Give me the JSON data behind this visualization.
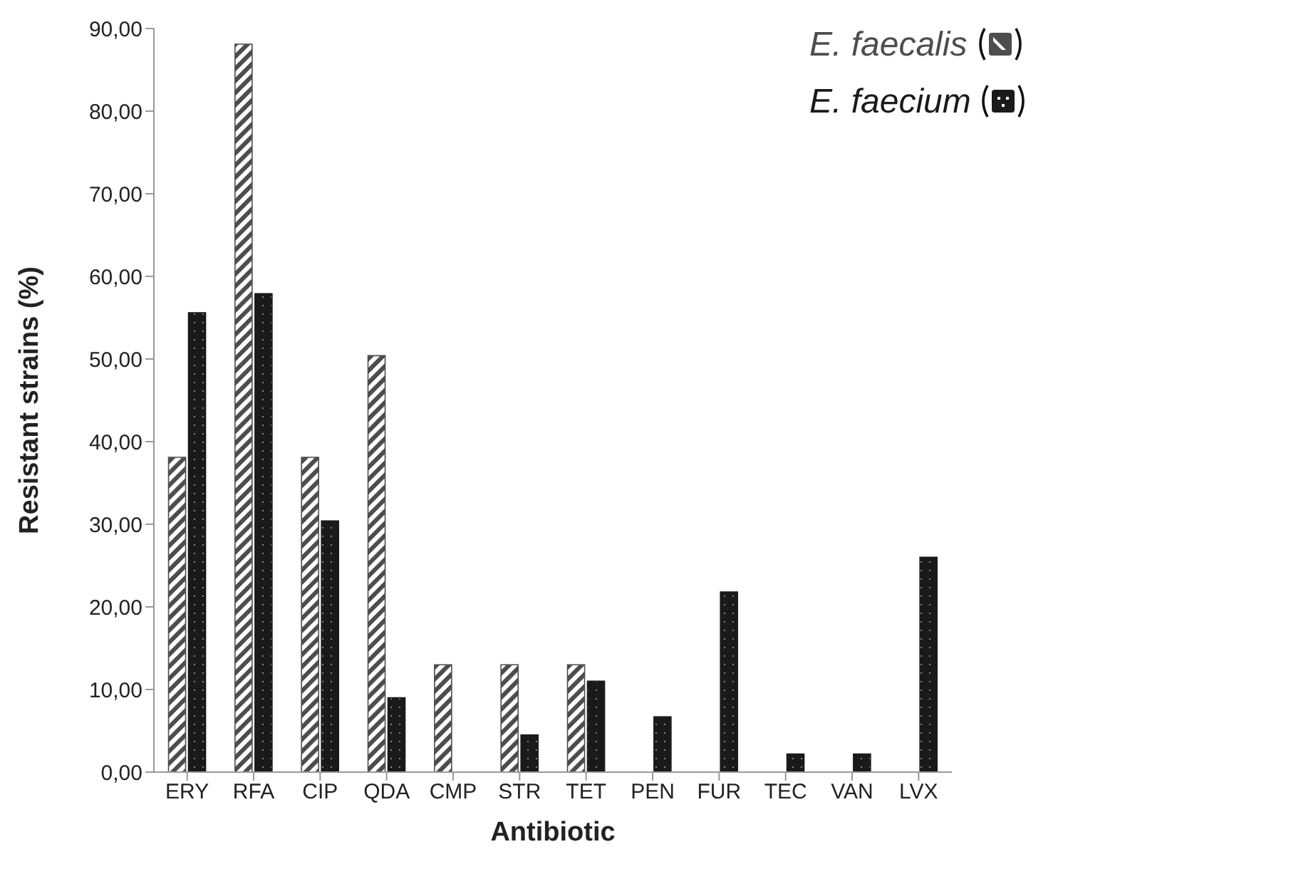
{
  "chart_data": {
    "type": "bar",
    "xlabel": "Antibiotic",
    "ylabel": "Resistant strains (%)",
    "categories": [
      "ERY",
      "RFA",
      "CIP",
      "QDA",
      "CMP",
      "STR",
      "TET",
      "PEN",
      "FUR",
      "TEC",
      "VAN",
      "LVX"
    ],
    "series": [
      {
        "name": "E. faecalis",
        "color": "#4d4d4d",
        "values": [
          38.1,
          88.1,
          38.1,
          50.4,
          13.0,
          13.0,
          13.0,
          0,
          0,
          0,
          0,
          0
        ]
      },
      {
        "name": "E. faecium",
        "color": "#1a1a1a",
        "values": [
          55.6,
          57.9,
          30.4,
          9.0,
          0,
          4.5,
          11.0,
          6.7,
          21.8,
          2.2,
          2.2,
          26.0
        ]
      }
    ],
    "ylim": [
      0,
      90
    ],
    "yticks": [
      {
        "value": 0,
        "label": "0,00"
      },
      {
        "value": 10,
        "label": "10,00"
      },
      {
        "value": 20,
        "label": "20,00"
      },
      {
        "value": 30,
        "label": "30,00"
      },
      {
        "value": 40,
        "label": "40,00"
      },
      {
        "value": 50,
        "label": "50,00"
      },
      {
        "value": 60,
        "label": "60,00"
      },
      {
        "value": 70,
        "label": "70,00"
      },
      {
        "value": 80,
        "label": "80,00"
      },
      {
        "value": 90,
        "label": "90,00"
      }
    ],
    "grid": false,
    "legend": "top right"
  }
}
